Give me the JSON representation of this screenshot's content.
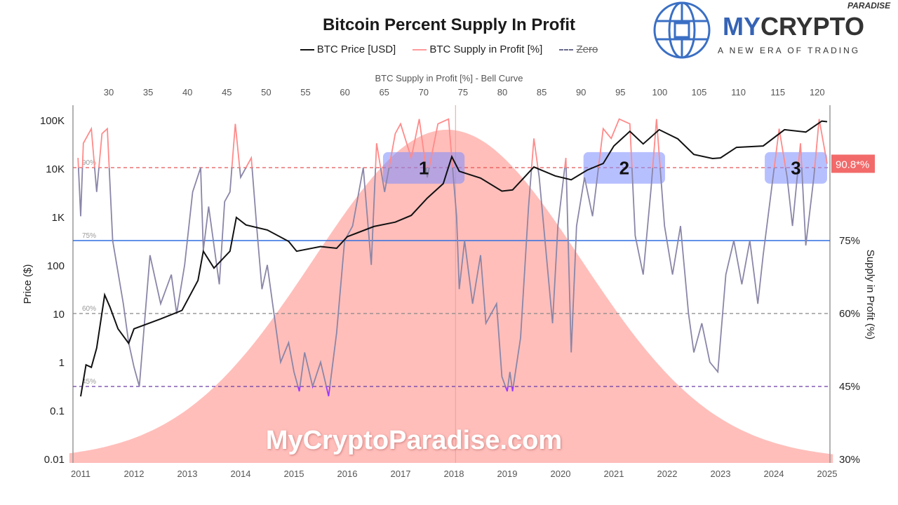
{
  "logo": {
    "brand_a": "MY",
    "brand_b": "CRYPTO",
    "super": "PARADISE",
    "tagline": "A NEW ERA OF TRADING",
    "colors": {
      "blue": "#3563b5",
      "dark": "#333333"
    }
  },
  "watermark": "MyCryptoParadise.com",
  "chart_data": {
    "type": "line",
    "title": "Bitcoin Percent Supply In Profit",
    "legend": [
      {
        "label": "BTC Price [USD]",
        "color": "#111111",
        "style": "solid"
      },
      {
        "label": "BTC Supply in Profit [%]",
        "color": "#ff8a8a",
        "style": "solid"
      },
      {
        "label": "Zero",
        "color": "#6a6a8a",
        "style": "dashed"
      }
    ],
    "legend_placement": "top-center",
    "top_axis": {
      "label": "BTC Supply in Profit [%] - Bell Curve",
      "ticks": [
        30,
        35,
        40,
        45,
        50,
        55,
        60,
        65,
        70,
        75,
        80,
        85,
        90,
        95,
        100,
        105,
        110,
        115,
        120
      ]
    },
    "x_ticks": [
      "2011",
      "2012",
      "2013",
      "2014",
      "2015",
      "2016",
      "2017",
      "2018",
      "2019",
      "2020",
      "2021",
      "2022",
      "2023",
      "2024",
      "2025"
    ],
    "xlim": [
      2010.95,
      2025.05
    ],
    "y_left": {
      "label": "Price ($)",
      "scale": "log",
      "ticks": [
        "0.01",
        "0.1",
        "1",
        "10",
        "100",
        "1K",
        "10K",
        "100K"
      ],
      "tick_values": [
        0.01,
        0.1,
        1,
        10,
        100,
        1000,
        10000,
        100000
      ]
    },
    "y_right": {
      "label": "Supply in Profit (%)",
      "ticks": [
        "30%",
        "45%",
        "60%",
        "75%"
      ],
      "tick_values": [
        30,
        45,
        60,
        75
      ],
      "range": [
        30,
        100
      ]
    },
    "reference_lines": [
      {
        "value": 90,
        "label": "90%",
        "color": "#e85555",
        "style": "dashed"
      },
      {
        "value": 75,
        "label": "75%",
        "color": "#2f6fe0",
        "style": "solid"
      },
      {
        "value": 60,
        "label": "60%",
        "color": "#888888",
        "style": "dashed"
      },
      {
        "value": 45,
        "label": "45%",
        "color": "#6a3ca8",
        "style": "dashed"
      }
    ],
    "current_value_badge": {
      "label": "90.8*%",
      "value": 90.8,
      "color": "#f26a6a"
    },
    "highlights": [
      {
        "label": "1",
        "from": 2016.67,
        "to": 2018.2,
        "low": 86.7,
        "high": 93.2
      },
      {
        "label": "2",
        "from": 2020.43,
        "to": 2021.96,
        "low": 86.7,
        "high": 93.2
      },
      {
        "label": "3",
        "from": 2023.83,
        "to": 2025.0,
        "low": 86.7,
        "high": 93.2
      }
    ],
    "bell_curve": {
      "mean": 73,
      "sd": 17,
      "peak_percent": 97.8,
      "color": "#ffb3ae"
    },
    "vertical_marker": 2018.03,
    "price_series": [
      [
        2011.0,
        0.2
      ],
      [
        2011.1,
        0.9
      ],
      [
        2011.2,
        0.8
      ],
      [
        2011.3,
        2
      ],
      [
        2011.45,
        25
      ],
      [
        2011.55,
        14
      ],
      [
        2011.7,
        5
      ],
      [
        2011.9,
        2.5
      ],
      [
        2012.0,
        5
      ],
      [
        2012.5,
        8
      ],
      [
        2012.9,
        12
      ],
      [
        2013.2,
        50
      ],
      [
        2013.3,
        200
      ],
      [
        2013.5,
        90
      ],
      [
        2013.8,
        200
      ],
      [
        2013.92,
        1000
      ],
      [
        2014.1,
        700
      ],
      [
        2014.5,
        550
      ],
      [
        2014.9,
        320
      ],
      [
        2015.05,
        200
      ],
      [
        2015.5,
        250
      ],
      [
        2015.8,
        230
      ],
      [
        2016.0,
        400
      ],
      [
        2016.5,
        650
      ],
      [
        2016.9,
        800
      ],
      [
        2017.2,
        1100
      ],
      [
        2017.5,
        2500
      ],
      [
        2017.8,
        5000
      ],
      [
        2017.96,
        18000
      ],
      [
        2018.1,
        9000
      ],
      [
        2018.5,
        6500
      ],
      [
        2018.9,
        3500
      ],
      [
        2019.1,
        3700
      ],
      [
        2019.5,
        11000
      ],
      [
        2019.9,
        7200
      ],
      [
        2020.2,
        6000
      ],
      [
        2020.5,
        9500
      ],
      [
        2020.8,
        13000
      ],
      [
        2021.0,
        30000
      ],
      [
        2021.3,
        60000
      ],
      [
        2021.55,
        33000
      ],
      [
        2021.85,
        65000
      ],
      [
        2022.2,
        42000
      ],
      [
        2022.5,
        20000
      ],
      [
        2022.85,
        16500
      ],
      [
        2023.0,
        17000
      ],
      [
        2023.3,
        28000
      ],
      [
        2023.8,
        30000
      ],
      [
        2024.2,
        65000
      ],
      [
        2024.6,
        58000
      ],
      [
        2024.9,
        98000
      ],
      [
        2025.0,
        95000
      ]
    ],
    "supply_series": [
      [
        2010.95,
        92
      ],
      [
        2011.0,
        80
      ],
      [
        2011.05,
        95
      ],
      [
        2011.2,
        98
      ],
      [
        2011.3,
        85
      ],
      [
        2011.4,
        97
      ],
      [
        2011.5,
        98
      ],
      [
        2011.6,
        75
      ],
      [
        2011.8,
        62
      ],
      [
        2011.9,
        54
      ],
      [
        2012.0,
        49
      ],
      [
        2012.1,
        45
      ],
      [
        2012.3,
        72
      ],
      [
        2012.5,
        62
      ],
      [
        2012.7,
        68
      ],
      [
        2012.8,
        60
      ],
      [
        2012.95,
        70
      ],
      [
        2013.1,
        85
      ],
      [
        2013.25,
        90
      ],
      [
        2013.3,
        73
      ],
      [
        2013.4,
        82
      ],
      [
        2013.6,
        66
      ],
      [
        2013.7,
        83
      ],
      [
        2013.8,
        85
      ],
      [
        2013.9,
        99
      ],
      [
        2014.0,
        88
      ],
      [
        2014.2,
        92
      ],
      [
        2014.3,
        78
      ],
      [
        2014.4,
        65
      ],
      [
        2014.5,
        70
      ],
      [
        2014.6,
        62
      ],
      [
        2014.75,
        50
      ],
      [
        2014.9,
        54
      ],
      [
        2015.0,
        48
      ],
      [
        2015.1,
        44
      ],
      [
        2015.2,
        52
      ],
      [
        2015.35,
        45
      ],
      [
        2015.5,
        50
      ],
      [
        2015.65,
        43
      ],
      [
        2015.8,
        56
      ],
      [
        2015.95,
        75
      ],
      [
        2016.1,
        78
      ],
      [
        2016.3,
        90
      ],
      [
        2016.45,
        70
      ],
      [
        2016.55,
        95
      ],
      [
        2016.7,
        85
      ],
      [
        2016.9,
        97
      ],
      [
        2017.0,
        99
      ],
      [
        2017.2,
        92
      ],
      [
        2017.35,
        100
      ],
      [
        2017.5,
        88
      ],
      [
        2017.7,
        99
      ],
      [
        2017.9,
        100
      ],
      [
        2018.05,
        80
      ],
      [
        2018.1,
        65
      ],
      [
        2018.2,
        75
      ],
      [
        2018.35,
        62
      ],
      [
        2018.5,
        72
      ],
      [
        2018.6,
        58
      ],
      [
        2018.8,
        62
      ],
      [
        2018.9,
        47
      ],
      [
        2019.0,
        44
      ],
      [
        2019.05,
        48
      ],
      [
        2019.1,
        44
      ],
      [
        2019.25,
        55
      ],
      [
        2019.4,
        82
      ],
      [
        2019.5,
        96
      ],
      [
        2019.6,
        88
      ],
      [
        2019.75,
        70
      ],
      [
        2019.85,
        58
      ],
      [
        2019.95,
        78
      ],
      [
        2020.1,
        92
      ],
      [
        2020.2,
        52
      ],
      [
        2020.3,
        78
      ],
      [
        2020.45,
        88
      ],
      [
        2020.6,
        80
      ],
      [
        2020.8,
        98
      ],
      [
        2020.95,
        96
      ],
      [
        2021.1,
        100
      ],
      [
        2021.3,
        99
      ],
      [
        2021.4,
        76
      ],
      [
        2021.55,
        68
      ],
      [
        2021.7,
        86
      ],
      [
        2021.8,
        100
      ],
      [
        2021.95,
        78
      ],
      [
        2022.1,
        68
      ],
      [
        2022.25,
        78
      ],
      [
        2022.4,
        60
      ],
      [
        2022.5,
        52
      ],
      [
        2022.65,
        58
      ],
      [
        2022.8,
        50
      ],
      [
        2022.95,
        48
      ],
      [
        2023.1,
        68
      ],
      [
        2023.25,
        75
      ],
      [
        2023.4,
        66
      ],
      [
        2023.55,
        75
      ],
      [
        2023.7,
        62
      ],
      [
        2023.8,
        72
      ],
      [
        2023.95,
        85
      ],
      [
        2024.1,
        98
      ],
      [
        2024.25,
        88
      ],
      [
        2024.35,
        78
      ],
      [
        2024.5,
        95
      ],
      [
        2024.6,
        74
      ],
      [
        2024.75,
        88
      ],
      [
        2024.85,
        100
      ],
      [
        2025.0,
        90.8
      ]
    ],
    "line_colors": {
      "above_90": "#ff8a8a",
      "mid": "#8a86a8",
      "below_45": "#9b3cff"
    }
  }
}
